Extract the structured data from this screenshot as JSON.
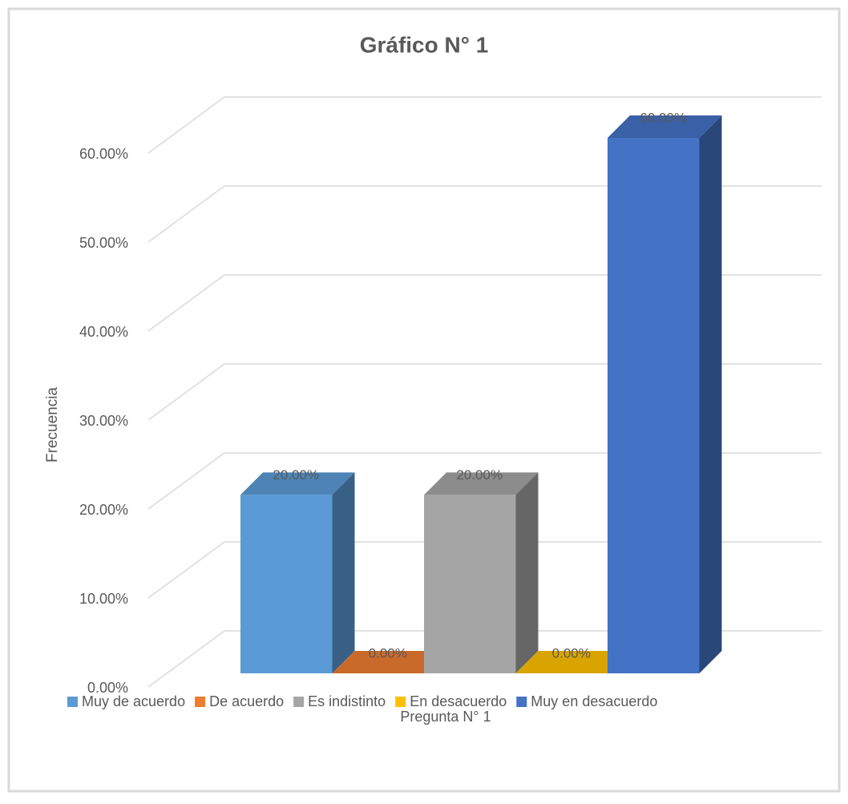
{
  "chart_data": {
    "type": "bar3d",
    "title": "Gráfico N° 1",
    "ylabel": "Frecuencia",
    "categories": [
      "Pregunta N° 1"
    ],
    "series": [
      {
        "name": "Muy de acuerdo",
        "color": "#5b9bd5",
        "values": [
          20
        ],
        "value_labels": [
          "20.00%"
        ]
      },
      {
        "name": "De acuerdo",
        "color": "#ed7d31",
        "values": [
          0
        ],
        "value_labels": [
          "0.00%"
        ]
      },
      {
        "name": "Es indistinto",
        "color": "#a5a5a5",
        "values": [
          20
        ],
        "value_labels": [
          "20.00%"
        ]
      },
      {
        "name": "En desacuerdo",
        "color": "#ffc000",
        "values": [
          0
        ],
        "value_labels": [
          "0.00%"
        ]
      },
      {
        "name": "Muy en desacuerdo",
        "color": "#4472c4",
        "values": [
          60
        ],
        "value_labels": [
          "60.00%"
        ]
      }
    ],
    "ylim": [
      0,
      60
    ],
    "yticks": [
      {
        "value": 0,
        "label": "0.00%"
      },
      {
        "value": 10,
        "label": "10.00%"
      },
      {
        "value": 20,
        "label": "20.00%"
      },
      {
        "value": 30,
        "label": "30.00%"
      },
      {
        "value": 40,
        "label": "40.00%"
      },
      {
        "value": 50,
        "label": "50.00%"
      },
      {
        "value": 60,
        "label": "60.00%"
      }
    ],
    "grid": true,
    "legend": "bottom"
  }
}
